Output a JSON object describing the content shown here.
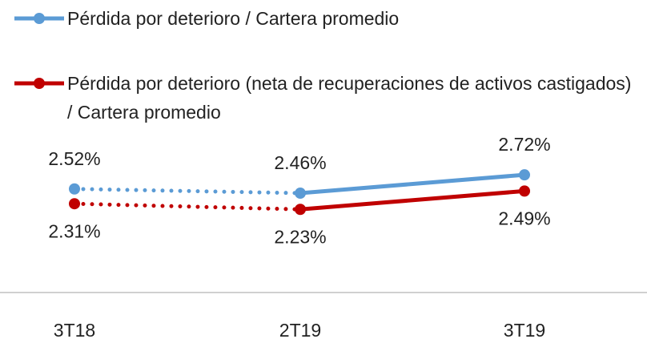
{
  "chart_data": {
    "type": "line",
    "categories": [
      "3T18",
      "2T19",
      "3T19"
    ],
    "series": [
      {
        "name": "Pérdida por deterioro / Cartera promedio",
        "color": "#5B9BD5",
        "values": [
          2.52,
          2.46,
          2.72
        ],
        "value_labels": [
          "2.52%",
          "2.46%",
          "2.72%"
        ]
      },
      {
        "name": "Pérdida por deterioro (neta de recuperaciones de activos castigados) / Cartera promedio",
        "color": "#C00000",
        "values": [
          2.31,
          2.23,
          2.49
        ],
        "value_labels": [
          "2.31%",
          "2.23%",
          "2.49%"
        ]
      }
    ],
    "segment_styles": [
      "dotted",
      "solid"
    ],
    "ylim": [
      2.0,
      3.0
    ],
    "legend": "top-left"
  }
}
